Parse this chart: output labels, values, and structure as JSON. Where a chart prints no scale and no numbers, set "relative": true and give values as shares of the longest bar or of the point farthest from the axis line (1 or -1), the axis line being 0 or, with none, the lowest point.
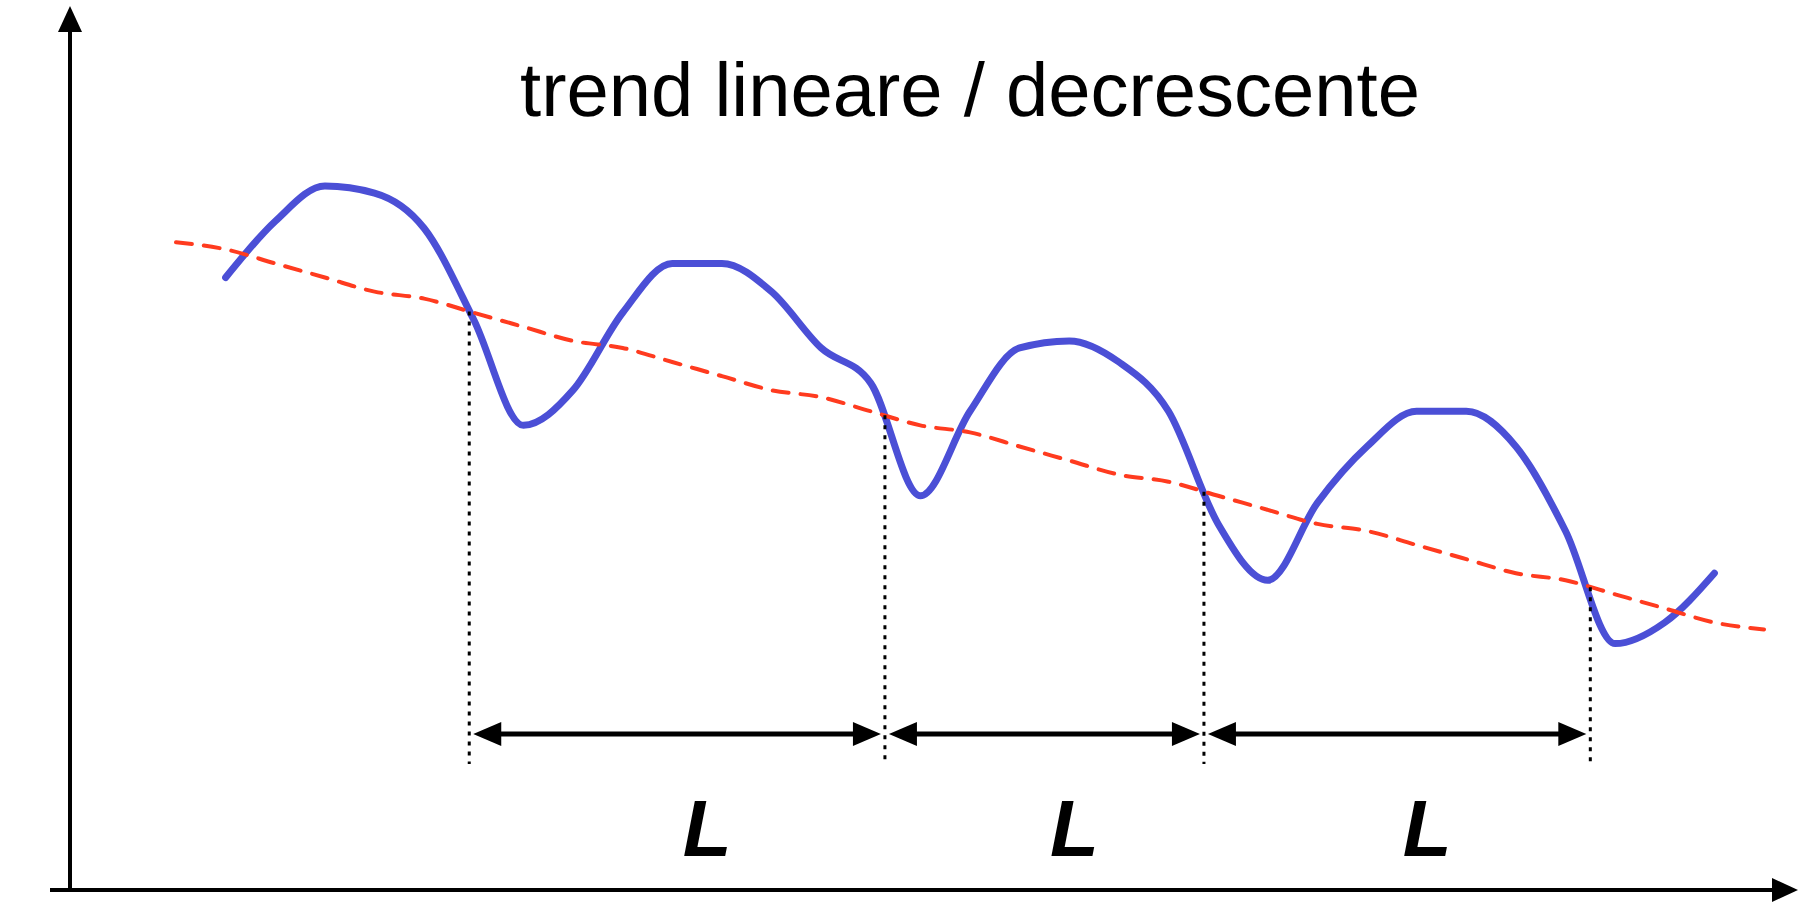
{
  "chart_data": {
    "type": "line",
    "title": "trend lineare / decrescente",
    "relative": true,
    "categories": [
      null,
      null,
      null,
      null,
      null,
      null,
      null,
      null,
      null,
      null,
      null,
      null,
      null,
      null,
      null,
      null,
      null,
      null,
      null,
      null,
      null,
      null,
      null,
      null,
      null,
      null,
      null,
      null,
      null,
      null,
      null,
      null,
      null
    ],
    "series": [
      {
        "color": "#4b4fd6",
        "line_style": "solid",
        "values": [
          null,
          0.87,
          0.95,
          1.0,
          0.99,
          0.94,
          0.81,
          0.66,
          0.71,
          0.82,
          0.89,
          0.89,
          0.85,
          0.77,
          0.72,
          0.56,
          0.68,
          0.77,
          0.78,
          0.75,
          0.68,
          0.52,
          0.44,
          0.55,
          0.63,
          0.68,
          0.68,
          0.63,
          0.51,
          0.35,
          0.38,
          0.45,
          null
        ]
      },
      {
        "type": "line",
        "color": "#ff3b1f",
        "line_style": "dashed",
        "values": [
          0.92,
          0.91,
          0.89,
          0.87,
          0.85,
          0.84,
          0.82,
          0.8,
          0.78,
          0.77,
          0.75,
          0.73,
          0.71,
          0.7,
          0.68,
          0.66,
          0.65,
          0.63,
          0.61,
          0.59,
          0.58,
          0.56,
          0.54,
          0.52,
          0.51,
          0.49,
          0.47,
          0.45,
          0.44,
          0.42,
          0.4,
          0.38,
          0.37
        ]
      }
    ],
    "annotations": [
      "L",
      "L",
      "L"
    ]
  }
}
